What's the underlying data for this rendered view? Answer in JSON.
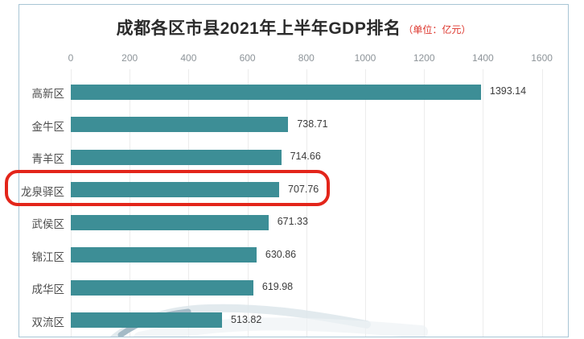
{
  "title": {
    "text": "成都各区市县2021年上半年GDP排名",
    "unit": "（单位：亿元）"
  },
  "colors": {
    "bar": "#3d8e96",
    "frame_border": "#a8c5d5",
    "grid": "#ececec",
    "title_text": "#2b2b2b",
    "unit_text": "#dd352c",
    "tick_text": "#8d9499",
    "category_text": "#4d4d4d",
    "value_text": "#3c3c3c",
    "highlight_red": "#e3251a"
  },
  "chart_data": {
    "type": "bar",
    "orientation": "horizontal",
    "title": "成都各区市县2021年上半年GDP排名（单位：亿元）",
    "xlabel": "",
    "ylabel": "",
    "xlim": [
      0,
      1600
    ],
    "x_ticks": [
      0,
      200,
      400,
      600,
      800,
      1000,
      1200,
      1400,
      1600
    ],
    "grid": true,
    "axis_position": "top",
    "categories": [
      "高新区",
      "金牛区",
      "青羊区",
      "龙泉驿区",
      "武侯区",
      "锦江区",
      "成华区",
      "双流区"
    ],
    "values": [
      1393.14,
      738.71,
      714.66,
      707.76,
      671.33,
      630.86,
      619.98,
      513.82
    ],
    "value_labels": [
      "1393.14",
      "738.71",
      "714.66",
      "707.76",
      "671.33",
      "630.86",
      "619.98",
      "513.82"
    ],
    "bar_color": "#3d8e96",
    "highlight": {
      "category": "龙泉驿区",
      "index": 3,
      "style": "red-rounded-box"
    }
  }
}
